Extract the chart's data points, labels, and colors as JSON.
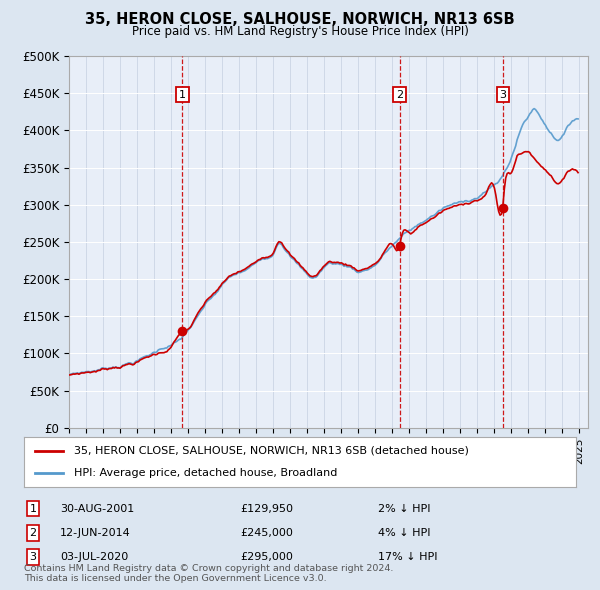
{
  "title": "35, HERON CLOSE, SALHOUSE, NORWICH, NR13 6SB",
  "subtitle": "Price paid vs. HM Land Registry's House Price Index (HPI)",
  "background_color": "#dce6f1",
  "plot_bg_color": "#dfe8f3",
  "grid_color": "#c8d4e8",
  "sales": [
    {
      "label": "1",
      "date": "2001-08-30",
      "price": 129950,
      "x": 2001.66
    },
    {
      "label": "2",
      "date": "2014-06-12",
      "price": 245000,
      "x": 2014.44
    },
    {
      "label": "3",
      "date": "2020-07-03",
      "price": 295000,
      "x": 2020.5
    }
  ],
  "sale_dates_display": [
    "30-AUG-2001",
    "12-JUN-2014",
    "03-JUL-2020"
  ],
  "sale_prices_display": [
    "£129,950",
    "£245,000",
    "£295,000"
  ],
  "sale_hpi_display": [
    "2% ↓ HPI",
    "4% ↓ HPI",
    "17% ↓ HPI"
  ],
  "legend_entries": [
    "35, HERON CLOSE, SALHOUSE, NORWICH, NR13 6SB (detached house)",
    "HPI: Average price, detached house, Broadland"
  ],
  "legend_colors": [
    "#cc0000",
    "#5599cc"
  ],
  "footer": "Contains HM Land Registry data © Crown copyright and database right 2024.\nThis data is licensed under the Open Government Licence v3.0.",
  "ylim": [
    0,
    500000
  ],
  "yticks": [
    0,
    50000,
    100000,
    150000,
    200000,
    250000,
    300000,
    350000,
    400000,
    450000,
    500000
  ],
  "ytick_labels": [
    "£0",
    "£50K",
    "£100K",
    "£150K",
    "£200K",
    "£250K",
    "£300K",
    "£350K",
    "£400K",
    "£450K",
    "£500K"
  ],
  "line_color_price": "#cc0000",
  "line_color_hpi": "#5599cc",
  "marker_color": "#cc0000",
  "xlim_start": 1995.0,
  "xlim_end": 2025.5
}
